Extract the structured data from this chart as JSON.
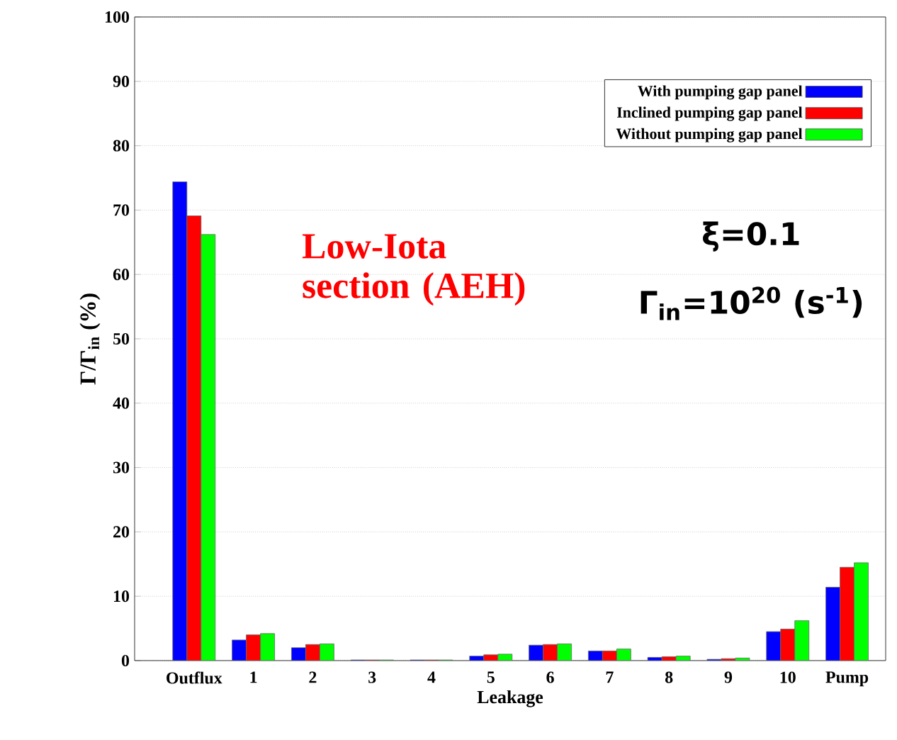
{
  "chart_data": {
    "type": "bar",
    "xlabel": "Leakage",
    "ylabel": "Γ/Γ$_{in}$ (%)",
    "categories": [
      "Outflux",
      "1",
      "2",
      "3",
      "4",
      "5",
      "6",
      "7",
      "8",
      "9",
      "10",
      "Pump"
    ],
    "series": [
      {
        "name": "With pumping gap panel",
        "color": "#0000ff",
        "values": [
          74.4,
          3.2,
          2.0,
          0.1,
          0.1,
          0.7,
          2.4,
          1.5,
          0.5,
          0.2,
          4.5,
          11.4
        ]
      },
      {
        "name": "Inclined pumping gap panel",
        "color": "#ff0000",
        "values": [
          69.1,
          4.0,
          2.5,
          0.1,
          0.1,
          0.9,
          2.5,
          1.5,
          0.6,
          0.3,
          4.9,
          14.5
        ]
      },
      {
        "name": "Without pumping gap panel",
        "color": "#00ff00",
        "values": [
          66.2,
          4.2,
          2.6,
          0.1,
          0.1,
          1.0,
          2.6,
          1.8,
          0.7,
          0.4,
          6.2,
          15.2
        ]
      }
    ],
    "ylim": [
      0,
      100
    ],
    "yticks": [
      0,
      10,
      20,
      30,
      40,
      50,
      60,
      70,
      80,
      90,
      100
    ],
    "grid": "y",
    "legend": "top right",
    "annotations": [
      "Low-Iota section (AEH)",
      "ξ=0.1",
      "Γ$_{in}$=10$^{20}$ (s$^{-1}$)"
    ]
  }
}
